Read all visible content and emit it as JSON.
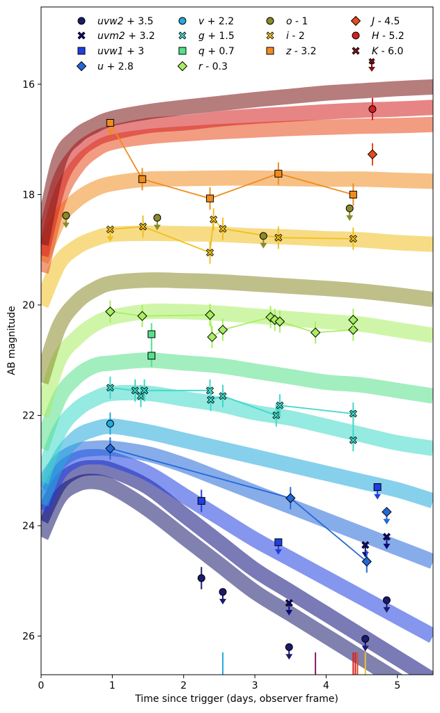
{
  "chart_data": {
    "type": "scatter",
    "title": "",
    "xlabel": "Time since trigger (days, observer frame)",
    "ylabel": "AB magnitude",
    "xlim": [
      0,
      5.5
    ],
    "ylim": [
      26.7,
      14.6
    ],
    "y_inverted": true,
    "x_ticks": [
      0,
      1,
      2,
      3,
      4,
      5
    ],
    "y_ticks": [
      16,
      18,
      20,
      22,
      24,
      26
    ],
    "grid": false,
    "legend_placement": "top, 4 columns",
    "series": [
      {
        "name": "uvw2 + 3.5",
        "color": "#1a1a6e",
        "marker": "circle",
        "model": {
          "x": [
            0,
            0.25,
            0.5,
            0.75,
            1.0,
            1.5,
            2.0,
            2.5,
            3.0,
            3.5,
            4.0,
            4.5,
            5.0,
            5.5
          ],
          "y": [
            24.2,
            23.5,
            23.25,
            23.2,
            23.3,
            23.7,
            24.2,
            24.7,
            25.2,
            25.6,
            26.0,
            26.4,
            26.8,
            27.2
          ]
        },
        "points": [
          {
            "x": 2.25,
            "y": 24.95
          }
        ],
        "upper_limits": [
          {
            "x": 2.55,
            "y": 25.2
          },
          {
            "x": 3.48,
            "y": 26.2
          },
          {
            "x": 4.55,
            "y": 26.05
          },
          {
            "x": 4.85,
            "y": 25.35
          }
        ]
      },
      {
        "name": "uvm2 + 3.2",
        "color": "#0d0d7a",
        "marker": "x",
        "model": {
          "x": [
            0,
            0.25,
            0.5,
            0.75,
            1.0,
            1.5,
            2.0,
            2.5,
            3.0,
            3.5,
            4.0,
            4.5,
            5.0,
            5.5
          ],
          "y": [
            23.9,
            23.25,
            23.0,
            22.95,
            23.0,
            23.3,
            23.8,
            24.3,
            24.8,
            25.2,
            25.6,
            26.0,
            26.4,
            26.8
          ]
        },
        "points": [],
        "upper_limits": [
          {
            "x": 3.48,
            "y": 25.4
          },
          {
            "x": 4.55,
            "y": 24.35
          },
          {
            "x": 4.85,
            "y": 24.2
          }
        ]
      },
      {
        "name": "uvw1 + 3",
        "color": "#1f3fe0",
        "marker": "square",
        "model": {
          "x": [
            0,
            0.25,
            0.5,
            0.75,
            1.0,
            1.5,
            2.0,
            2.5,
            3.0,
            3.5,
            4.0,
            4.5,
            5.0,
            5.5
          ],
          "y": [
            23.7,
            23.05,
            22.8,
            22.75,
            22.8,
            23.05,
            23.45,
            23.85,
            24.25,
            24.6,
            24.95,
            25.3,
            25.65,
            26.0
          ]
        },
        "points": [
          {
            "x": 2.25,
            "y": 23.55
          }
        ],
        "upper_limits": [
          {
            "x": 3.33,
            "y": 24.3
          },
          {
            "x": 4.72,
            "y": 23.3
          }
        ]
      },
      {
        "name": "u + 2.8",
        "color": "#2468d8",
        "marker": "diamond",
        "model": {
          "x": [
            0,
            0.25,
            0.5,
            0.75,
            1.0,
            1.5,
            2.0,
            2.5,
            3.0,
            3.5,
            4.0,
            4.5,
            5.0,
            5.5
          ],
          "y": [
            23.3,
            22.85,
            22.65,
            22.6,
            22.6,
            22.7,
            22.9,
            23.15,
            23.4,
            23.65,
            23.9,
            24.15,
            24.4,
            24.65
          ]
        },
        "points": [
          {
            "x": 0.97,
            "y": 22.6
          },
          {
            "x": 3.5,
            "y": 23.5
          },
          {
            "x": 4.57,
            "y": 24.65
          }
        ],
        "upper_limits": [
          {
            "x": 4.85,
            "y": 23.75
          }
        ]
      },
      {
        "name": "v + 2.2",
        "color": "#22aadd",
        "marker": "circle",
        "model": {
          "x": [
            0,
            0.25,
            0.5,
            0.75,
            1.0,
            1.5,
            2.0,
            2.5,
            3.0,
            3.5,
            4.0,
            4.5,
            5.0,
            5.5
          ],
          "y": [
            23.6,
            22.8,
            22.4,
            22.25,
            22.2,
            22.3,
            22.45,
            22.6,
            22.75,
            22.9,
            23.05,
            23.2,
            23.35,
            23.55
          ]
        },
        "points": [
          {
            "x": 0.97,
            "y": 22.15
          }
        ],
        "upper_limits": []
      },
      {
        "name": "g + 1.5",
        "color": "#3ed8c8",
        "marker": "x",
        "model": {
          "x": [
            0,
            0.25,
            0.5,
            0.75,
            1.0,
            1.5,
            2.0,
            2.5,
            3.0,
            3.5,
            4.0,
            4.5,
            5.0,
            5.5
          ],
          "y": [
            23.2,
            22.3,
            21.9,
            21.7,
            21.6,
            21.6,
            21.7,
            21.8,
            21.95,
            22.05,
            22.2,
            22.35,
            22.5,
            22.6
          ]
        },
        "points": [
          {
            "x": 0.97,
            "y": 21.5
          },
          {
            "x": 1.32,
            "y": 21.55
          },
          {
            "x": 1.4,
            "y": 21.65
          },
          {
            "x": 1.45,
            "y": 21.55
          },
          {
            "x": 2.37,
            "y": 21.55
          },
          {
            "x": 2.38,
            "y": 21.72
          },
          {
            "x": 2.55,
            "y": 21.65
          },
          {
            "x": 3.3,
            "y": 22.0
          },
          {
            "x": 3.35,
            "y": 21.82
          },
          {
            "x": 4.38,
            "y": 21.97
          },
          {
            "x": 4.38,
            "y": 22.45
          }
        ],
        "upper_limits": []
      },
      {
        "name": "q + 0.7",
        "color": "#55e08a",
        "marker": "square",
        "model": {
          "x": [
            0,
            0.25,
            0.5,
            0.75,
            1.0,
            1.5,
            2.0,
            2.5,
            3.0,
            3.5,
            4.0,
            4.5,
            5.0,
            5.5
          ],
          "y": [
            22.6,
            21.7,
            21.3,
            21.1,
            21.05,
            21.0,
            21.05,
            21.1,
            21.2,
            21.3,
            21.4,
            21.45,
            21.55,
            21.65
          ]
        },
        "points": [
          {
            "x": 1.55,
            "y": 20.53
          },
          {
            "x": 1.55,
            "y": 20.92
          }
        ],
        "upper_limits": []
      },
      {
        "name": "r - 0.3",
        "color": "#a8ee60",
        "marker": "diamond",
        "model": {
          "x": [
            0,
            0.25,
            0.5,
            0.75,
            1.0,
            1.5,
            2.0,
            2.5,
            3.0,
            3.5,
            4.0,
            4.5,
            5.0,
            5.5
          ],
          "y": [
            22.0,
            21.0,
            20.6,
            20.35,
            20.22,
            20.12,
            20.12,
            20.15,
            20.2,
            20.25,
            20.3,
            20.35,
            20.45,
            20.55
          ]
        },
        "points": [
          {
            "x": 0.97,
            "y": 20.12
          },
          {
            "x": 1.42,
            "y": 20.2
          },
          {
            "x": 2.37,
            "y": 20.18
          },
          {
            "x": 2.4,
            "y": 20.58
          },
          {
            "x": 2.55,
            "y": 20.45
          },
          {
            "x": 3.22,
            "y": 20.22
          },
          {
            "x": 3.28,
            "y": 20.27
          },
          {
            "x": 3.35,
            "y": 20.3
          },
          {
            "x": 3.85,
            "y": 20.5
          },
          {
            "x": 4.38,
            "y": 20.45
          },
          {
            "x": 4.38,
            "y": 20.27
          }
        ],
        "upper_limits": []
      },
      {
        "name": "o - 1",
        "color": "#8a8a2a",
        "marker": "circle",
        "model": {
          "x": [
            0,
            0.25,
            0.5,
            0.75,
            1.0,
            1.5,
            2.0,
            2.5,
            3.0,
            3.5,
            4.0,
            4.5,
            5.0,
            5.5
          ],
          "y": [
            21.4,
            20.4,
            19.95,
            19.72,
            19.6,
            19.55,
            19.56,
            19.58,
            19.62,
            19.66,
            19.7,
            19.75,
            19.82,
            19.9
          ]
        },
        "points": [],
        "upper_limits": [
          {
            "x": 0.35,
            "y": 18.38
          },
          {
            "x": 1.63,
            "y": 18.42
          },
          {
            "x": 3.12,
            "y": 18.75
          },
          {
            "x": 4.33,
            "y": 18.25
          }
        ]
      },
      {
        "name": "i - 2",
        "color": "#f0c020",
        "marker": "x",
        "model": {
          "x": [
            0,
            0.25,
            0.5,
            0.75,
            1.0,
            1.5,
            2.0,
            2.5,
            3.0,
            3.5,
            4.0,
            4.5,
            5.0,
            5.5
          ],
          "y": [
            20.0,
            19.25,
            18.95,
            18.8,
            18.72,
            18.7,
            18.71,
            18.72,
            18.75,
            18.77,
            18.8,
            18.82,
            18.87,
            18.9
          ]
        },
        "points": [
          {
            "x": 1.43,
            "y": 18.58
          },
          {
            "x": 2.37,
            "y": 19.05
          },
          {
            "x": 2.42,
            "y": 18.45
          },
          {
            "x": 2.55,
            "y": 18.62
          },
          {
            "x": 3.33,
            "y": 18.78
          },
          {
            "x": 4.38,
            "y": 18.8
          }
        ],
        "upper_limits": [
          {
            "x": 0.97,
            "y": 18.63
          }
        ]
      },
      {
        "name": "z - 3.2",
        "color": "#f08c20",
        "marker": "square",
        "model": {
          "x": [
            0,
            0.25,
            0.5,
            0.75,
            1.0,
            1.5,
            2.0,
            2.5,
            3.0,
            3.5,
            4.0,
            4.5,
            5.0,
            5.5
          ],
          "y": [
            19.2,
            18.45,
            18.1,
            17.9,
            17.8,
            17.72,
            17.71,
            17.7,
            17.7,
            17.71,
            17.72,
            17.72,
            17.74,
            17.76
          ]
        },
        "points": [
          {
            "x": 1.42,
            "y": 17.72
          },
          {
            "x": 2.37,
            "y": 18.07
          },
          {
            "x": 3.33,
            "y": 17.62
          },
          {
            "x": 4.38,
            "y": 18.0
          }
        ],
        "upper_limits": [
          {
            "x": 0.97,
            "y": 16.7
          }
        ]
      },
      {
        "name": "J - 4.5",
        "color": "#e84a1a",
        "marker": "diamond",
        "model": {
          "x": [
            0,
            0.25,
            0.5,
            0.75,
            1.0,
            1.5,
            2.0,
            2.5,
            3.0,
            3.5,
            4.0,
            4.5,
            5.0,
            5.5
          ],
          "y": [
            19.4,
            18.1,
            17.5,
            17.2,
            17.05,
            16.95,
            16.9,
            16.86,
            16.83,
            16.8,
            16.78,
            16.76,
            16.75,
            16.73
          ]
        },
        "points": [
          {
            "x": 4.65,
            "y": 17.27
          }
        ],
        "upper_limits": []
      },
      {
        "name": "H - 5.2",
        "color": "#d42020",
        "marker": "circle",
        "model": {
          "x": [
            0,
            0.25,
            0.5,
            0.75,
            1.0,
            1.5,
            2.0,
            2.5,
            3.0,
            3.5,
            4.0,
            4.5,
            5.0,
            5.5
          ],
          "y": [
            19.1,
            17.8,
            17.25,
            17.0,
            16.88,
            16.75,
            16.7,
            16.63,
            16.58,
            16.54,
            16.5,
            16.47,
            16.45,
            16.42
          ]
        },
        "points": [
          {
            "x": 4.65,
            "y": 16.45
          }
        ],
        "upper_limits": []
      },
      {
        "name": "K - 6.0",
        "color": "#7a1212",
        "marker": "x",
        "model": {
          "x": [
            0,
            0.25,
            0.5,
            0.75,
            1.0,
            1.5,
            2.0,
            2.5,
            3.0,
            3.5,
            4.0,
            4.5,
            5.0,
            5.5
          ],
          "y": [
            18.9,
            17.4,
            16.95,
            16.75,
            16.62,
            16.5,
            16.42,
            16.35,
            16.28,
            16.22,
            16.16,
            16.12,
            16.08,
            16.05
          ]
        },
        "points": [],
        "upper_limits": []
      }
    ],
    "connected_series": [
      "uvw1 + 3",
      "u + 2.8",
      "g + 1.5",
      "r - 0.3",
      "i - 2",
      "z - 3.2"
    ],
    "observation_markers": [
      {
        "x": 2.55,
        "color": "#22aadd"
      },
      {
        "x": 3.85,
        "color": "#8a1a6e"
      },
      {
        "x": 4.38,
        "color": "#d42020"
      },
      {
        "x": 4.41,
        "color": "#d42020"
      },
      {
        "x": 4.44,
        "color": "#e84a1a"
      },
      {
        "x": 4.55,
        "color": "#f0c020"
      }
    ]
  }
}
